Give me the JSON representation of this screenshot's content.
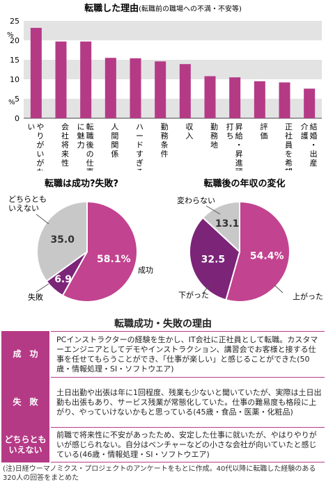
{
  "chart_data": [
    {
      "type": "bar",
      "title": "転職した理由",
      "subtitle": "(転職前の職場への不満・不安等)",
      "ylabel": "%",
      "ylim": [
        0,
        25
      ],
      "yticks": [
        0,
        5,
        10,
        15,
        20,
        25
      ],
      "grid": true,
      "categories": [
        "やりがいがない",
        "会社将来性",
        "転職後の仕事に魅力",
        "人間関係",
        "ハードすぎる",
        "勤務条件",
        "収入",
        "勤務地",
        "昇給・昇進頭打ち",
        "評価",
        "正社員を希望",
        "結婚・出産・介護"
      ],
      "values": [
        23.2,
        19.7,
        19.7,
        15.5,
        15.4,
        14.6,
        13.9,
        10.8,
        10.5,
        9.5,
        9.2,
        7.6
      ],
      "color": "#b53a86"
    },
    {
      "type": "pie",
      "title": "転職は成功?失敗?",
      "slices": [
        {
          "label": "成功",
          "value": 58.1,
          "value_text": "58.1%",
          "color": "#c2438f"
        },
        {
          "label": "失敗",
          "value": 6.9,
          "value_text": "6.9",
          "color": "#7b2478"
        },
        {
          "label": "どちらとも\nいえない",
          "value": 35.0,
          "value_text": "35.0",
          "color": "#c8c8c8"
        }
      ]
    },
    {
      "type": "pie",
      "title": "転職後の年収の変化",
      "slices": [
        {
          "label": "上がった",
          "value": 54.4,
          "value_text": "54.4%",
          "color": "#c2438f"
        },
        {
          "label": "下がった",
          "value": 32.5,
          "value_text": "32.5",
          "color": "#7b2478"
        },
        {
          "label": "変わらない",
          "value": 13.1,
          "value_text": "13.1",
          "color": "#c8c8c8"
        }
      ]
    }
  ],
  "reasons": {
    "title": "転職成功・失敗の理由",
    "rows": [
      {
        "label": "成　功",
        "text": "PCインストラクターの経験を生かし、IT会社に正社員として転職。カスタマーエンジニアとしてデモやインストラクション、講習会でお客様と接する仕事を任せてもらうことができ、「仕事が楽しい」と感じることができた(50歳・情報処理・SI・ソフトウエア)"
      },
      {
        "label": "失　敗",
        "text": "土日出勤や出張は年に1回程度、残業も少ないと聞いていたが、実際は土日出勤も出張もあり、サービス残業が常態化していた。仕事の難易度も格段に上がり、やっていけないかもと思っている(45歳・食品・医薬・化粧品)"
      },
      {
        "label": "どちらとも\nいえない",
        "text": "前職で将来性に不安があったため、安定した仕事に就いたが、やはりやりがいが感じられない。自分はベンチャーなどの小さな会社が向いていたと感じている(46歳・情報処理・SI・ソフトウエア)"
      }
    ]
  },
  "footnote": "(注)日経ウーマノミクス・プロジェクトのアンケートをもとに作成。40代以降に転職した経験のある320人の回答をまとめた"
}
